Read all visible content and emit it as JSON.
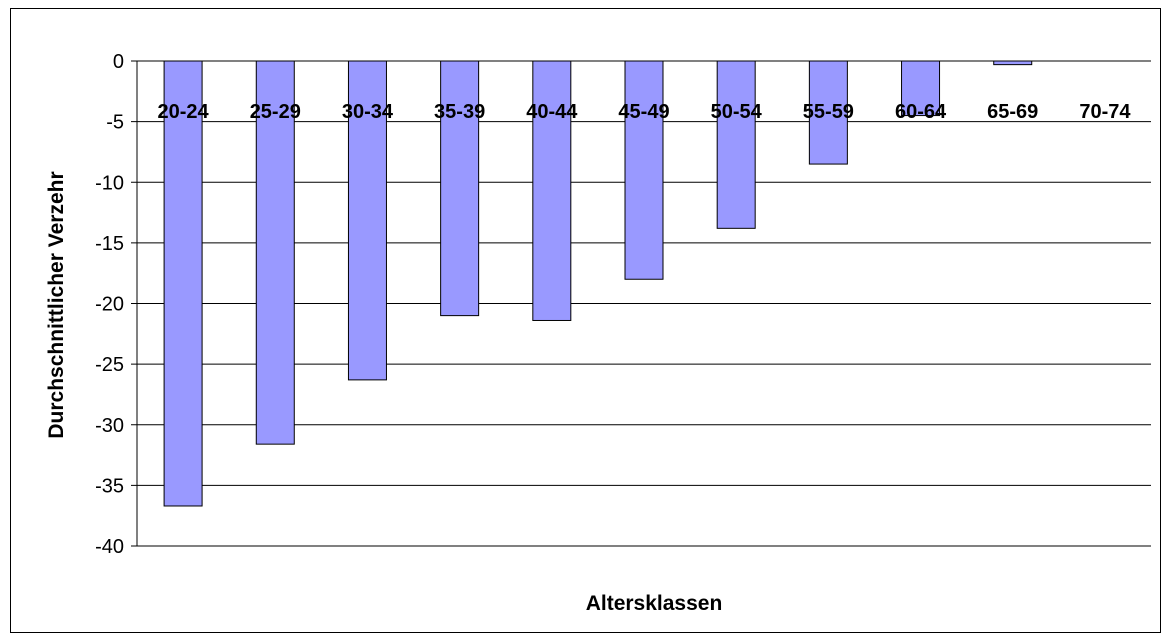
{
  "chart_data": {
    "type": "bar",
    "categories": [
      "20-24",
      "25-29",
      "30-34",
      "35-39",
      "40-44",
      "45-49",
      "50-54",
      "55-59",
      "60-64",
      "65-69",
      "70-74"
    ],
    "values": [
      -36.7,
      -31.6,
      -26.3,
      -21.0,
      -21.4,
      -18.0,
      -13.8,
      -8.5,
      -4.5,
      -0.3,
      0
    ],
    "title": "",
    "xlabel": "Altersklassen",
    "ylabel": "Durchschnittlicher Verzehr",
    "ylim": [
      -40,
      0
    ],
    "yticks": [
      0,
      -5,
      -10,
      -15,
      -20,
      -25,
      -30,
      -35,
      -40
    ],
    "ytick_labels": [
      "0",
      "-5",
      "-10",
      "-15",
      "-20",
      "-25",
      "-30",
      "-35",
      "-40"
    ],
    "grid": true,
    "legend": "none",
    "bar_color": "#9999ff",
    "bar_border_color": "#000000"
  }
}
